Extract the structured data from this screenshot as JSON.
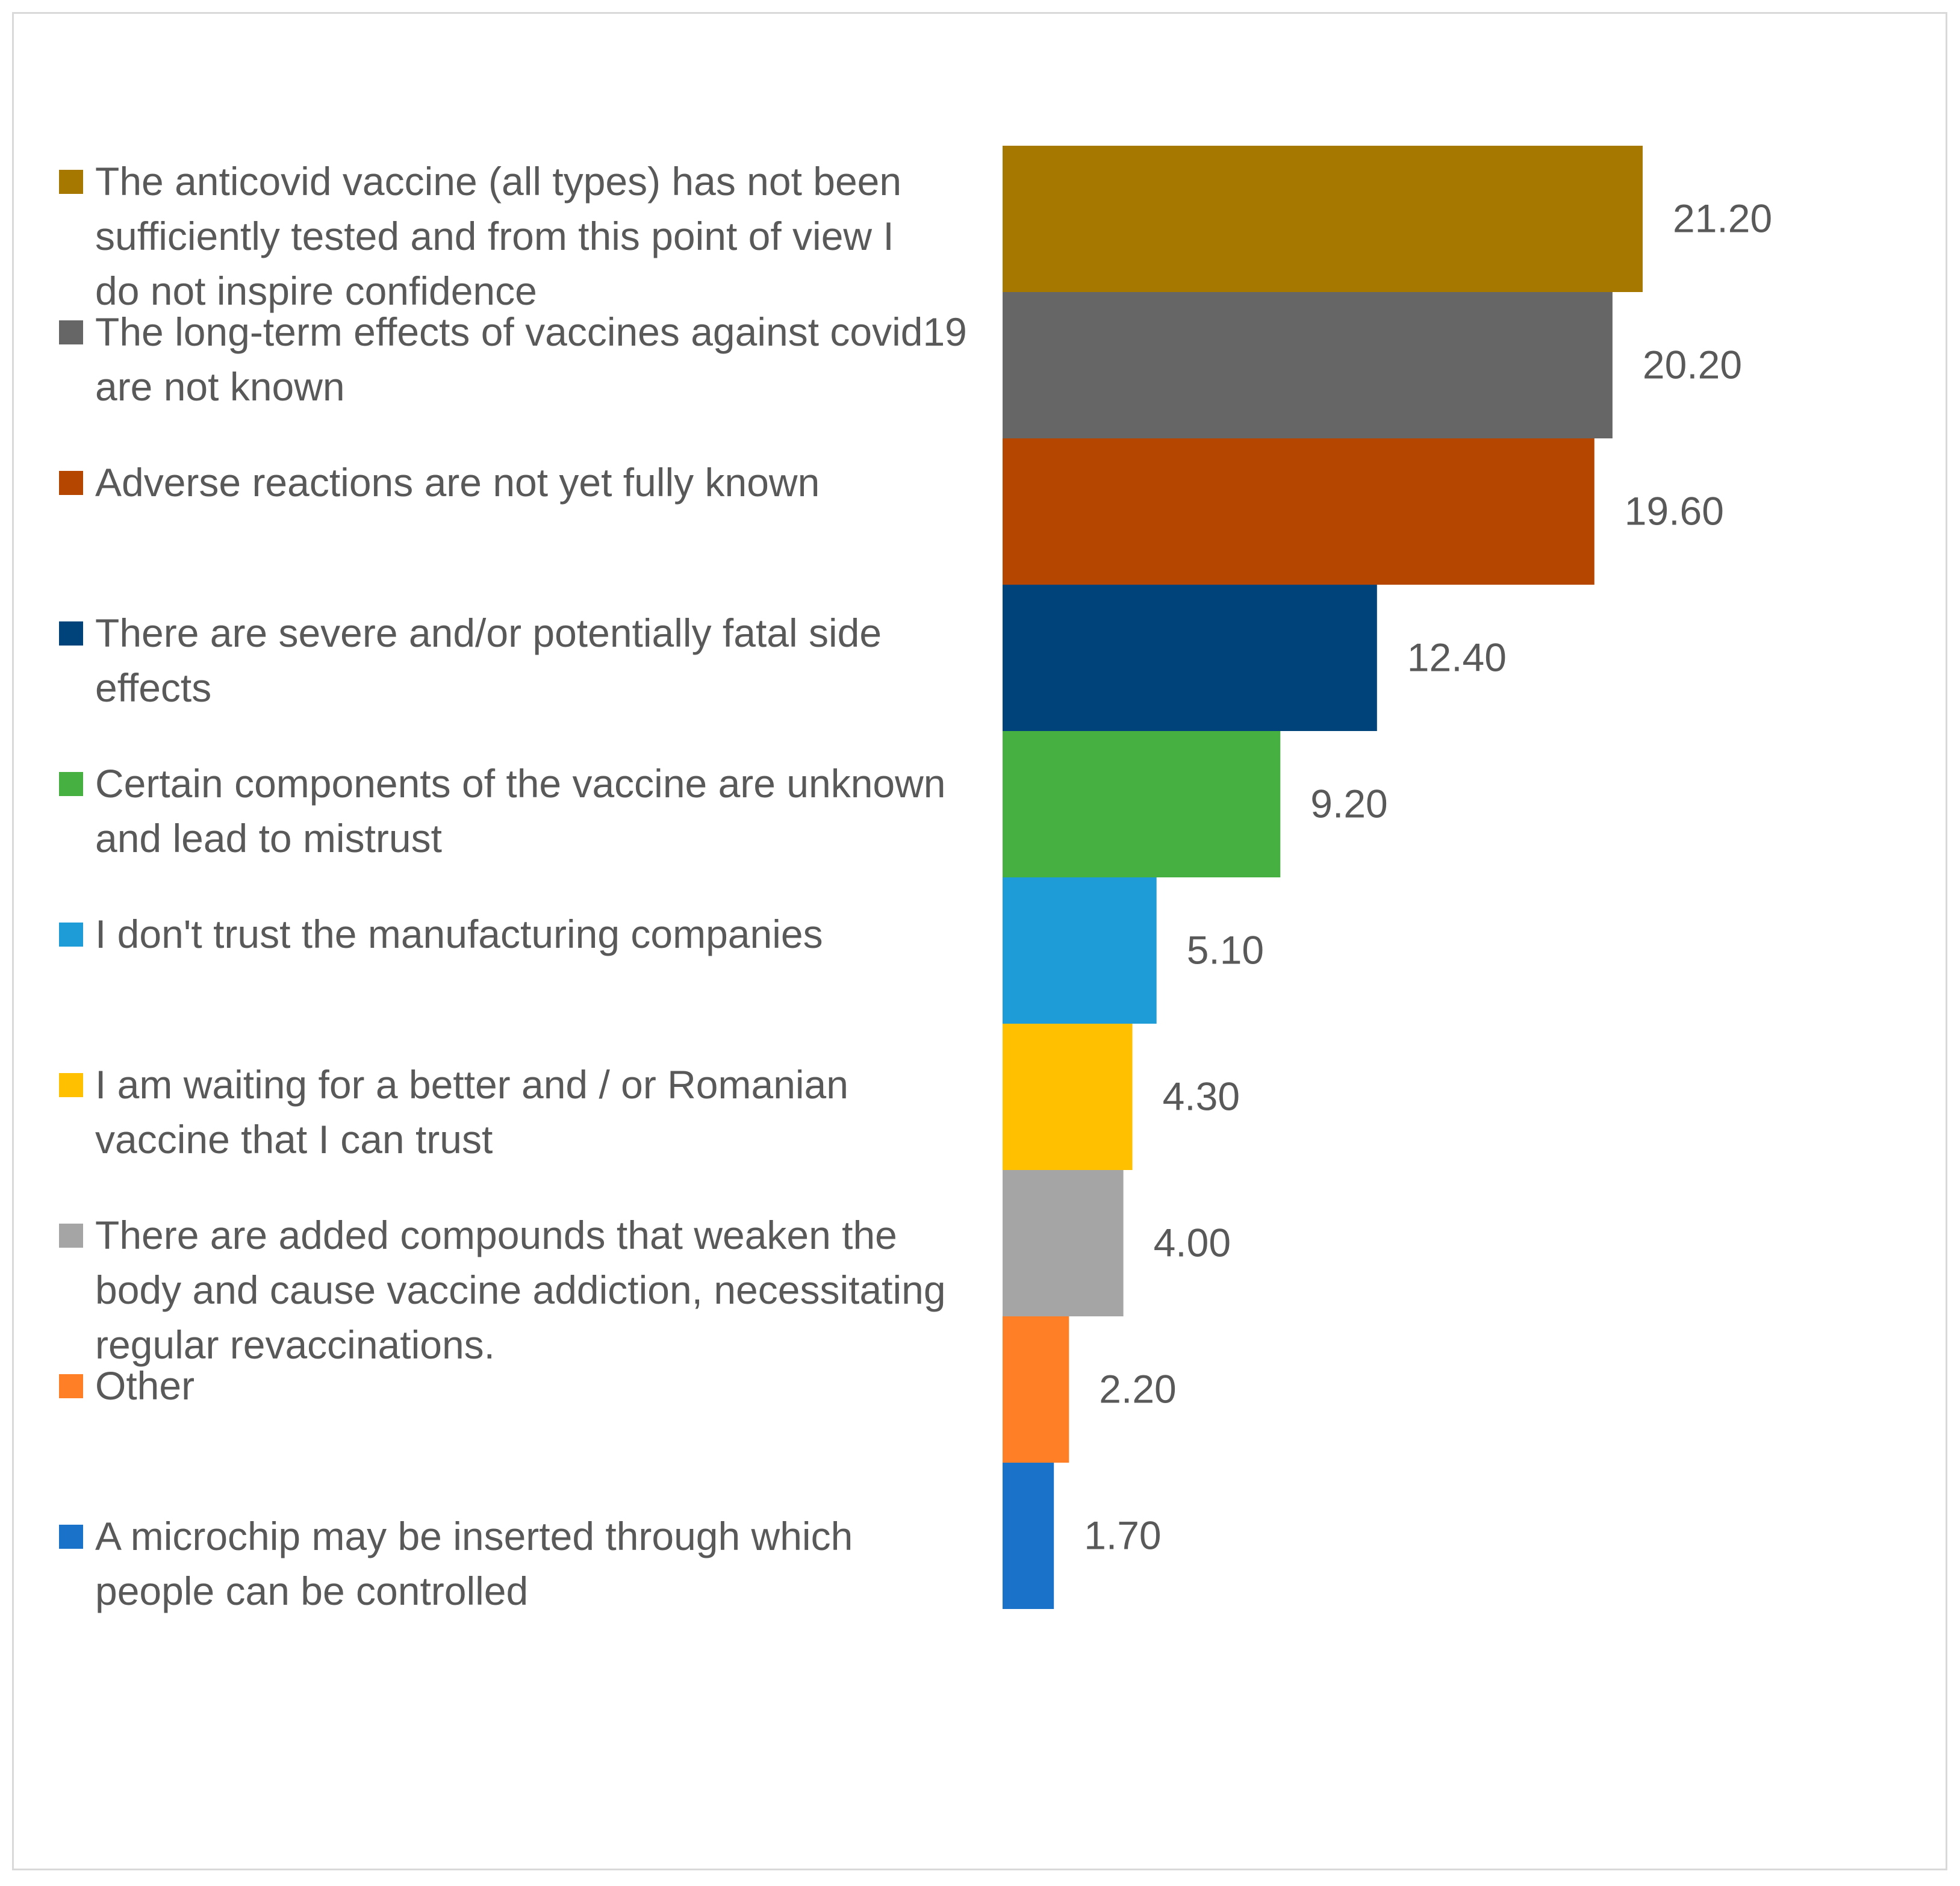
{
  "chart_data": {
    "type": "bar",
    "orientation": "horizontal",
    "title": "",
    "xlabel": "",
    "ylabel": "",
    "legend_position": "left",
    "grid": false,
    "xlim": [
      0,
      21.2
    ],
    "categories": [
      "The anticovid vaccine (all types) has not been sufficiently tested and from this point of view I do not inspire confidence",
      "The long-term effects of vaccines against covid19 are not known",
      "Adverse reactions are not yet fully known",
      "There are severe and/or potentially fatal side effects",
      "Certain components of the vaccine are unknown and lead to mistrust",
      "I don't trust the manufacturing companies",
      "I am waiting for a better and / or Romanian vaccine that I can trust",
      "There are added compounds that weaken the body and cause vaccine addiction, necessitating regular revaccinations.",
      "Other",
      "A microchip may be inserted through which people can be controlled"
    ],
    "legend_lines": [
      [
        "The anticovid vaccine (all types) has not been",
        "sufficiently tested and from this point of view I",
        "do not inspire confidence"
      ],
      [
        "The long-term effects of vaccines against covid19",
        "are not known"
      ],
      [
        "Adverse reactions are not yet fully known"
      ],
      [
        "There are severe and/or potentially fatal side",
        "effects"
      ],
      [
        "Certain components of the vaccine are unknown",
        "and lead to mistrust"
      ],
      [
        "I don't trust the manufacturing companies"
      ],
      [
        "I am waiting for a better and / or Romanian",
        "vaccine that I can trust"
      ],
      [
        "There are added compounds that weaken the",
        "body and cause vaccine addiction, necessitating",
        "regular revaccinations."
      ],
      [
        "Other"
      ],
      [
        "A microchip may be inserted through which",
        "people can be controlled"
      ]
    ],
    "values": [
      21.2,
      20.2,
      19.6,
      12.4,
      9.2,
      5.1,
      4.3,
      4.0,
      2.2,
      1.7
    ],
    "value_labels": [
      "21.20",
      "20.20",
      "19.60",
      "12.40",
      "9.20",
      "5.10",
      "4.30",
      "4.00",
      "2.20",
      "1.70"
    ],
    "colors": [
      "#A67800",
      "#666666",
      "#B54600",
      "#00437A",
      "#46B040",
      "#1E9CD8",
      "#FFC000",
      "#A5A5A5",
      "#FF7F26",
      "#1A73C8"
    ]
  }
}
